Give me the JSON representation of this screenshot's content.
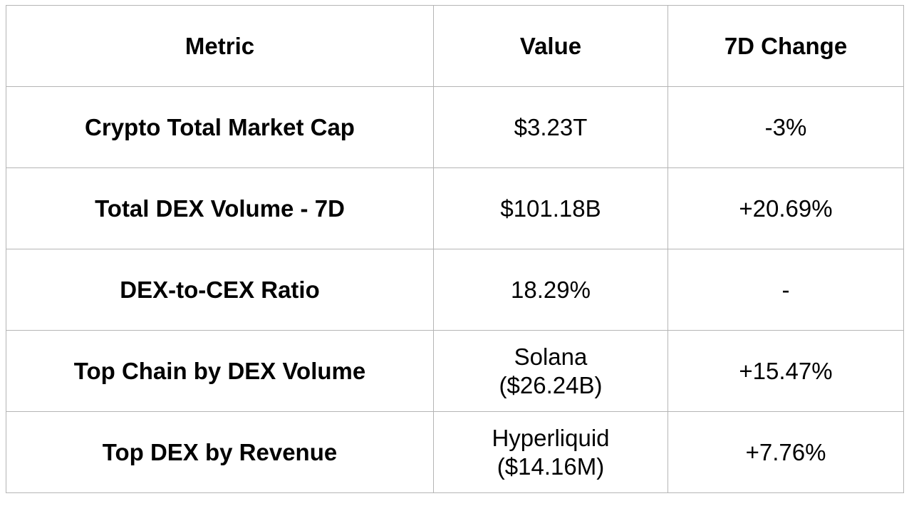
{
  "table": {
    "headers": [
      "Metric",
      "Value",
      "7D Change"
    ],
    "rows": [
      {
        "metric": "Crypto Total Market Cap",
        "value_lines": [
          "$3.23T"
        ],
        "change": "-3%"
      },
      {
        "metric": "Total DEX Volume - 7D",
        "value_lines": [
          "$101.18B"
        ],
        "change": "+20.69%"
      },
      {
        "metric": "DEX-to-CEX Ratio",
        "value_lines": [
          "18.29%"
        ],
        "change": "-"
      },
      {
        "metric": "Top Chain by DEX Volume",
        "value_lines": [
          "Solana",
          "($26.24B)"
        ],
        "change": "+15.47%"
      },
      {
        "metric": "Top DEX by Revenue",
        "value_lines": [
          "Hyperliquid",
          "($14.16M)"
        ],
        "change": "+7.76%"
      }
    ]
  }
}
